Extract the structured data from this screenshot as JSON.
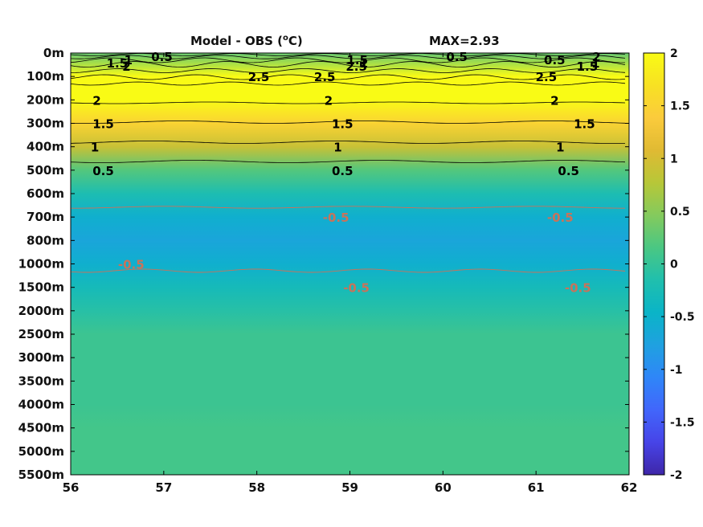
{
  "chart_data": {
    "type": "heatmap",
    "title": "Model - OBS (",
    "title_sup": "o",
    "title_tail": "C)",
    "max_label": "MAX=2.93",
    "x_ticks": [
      "56",
      "57",
      "58",
      "59",
      "60",
      "61",
      "62"
    ],
    "xlim": [
      56,
      62
    ],
    "y_ticks": [
      "0m",
      "100m",
      "200m",
      "300m",
      "400m",
      "500m",
      "600m",
      "700m",
      "800m",
      "1000m",
      "1500m",
      "2000m",
      "2500m",
      "3000m",
      "3500m",
      "4000m",
      "4500m",
      "5000m",
      "5500m"
    ],
    "colorbar": {
      "ticks": [
        "2",
        "1.5",
        "1",
        "0.5",
        "0",
        "-0.5",
        "-1",
        "-1.5",
        "-2"
      ],
      "clim": [
        -2,
        2
      ],
      "colormap": "parula",
      "colors": [
        "#3e26a8",
        "#4744e8",
        "#4166fb",
        "#2f86f8",
        "#1fa1e0",
        "#0ab4c7",
        "#20bfad",
        "#4ac783",
        "#84ca5d",
        "#b7c738",
        "#e0ba33",
        "#fbcb3c",
        "#f8e123",
        "#f9fb15"
      ]
    },
    "depth_profile": [
      {
        "depth": "0m",
        "value": 0.3
      },
      {
        "depth": "100m",
        "value": 2.6
      },
      {
        "depth": "200m",
        "value": 2.0
      },
      {
        "depth": "300m",
        "value": 1.5
      },
      {
        "depth": "400m",
        "value": 0.9
      },
      {
        "depth": "500m",
        "value": 0.2
      },
      {
        "depth": "600m",
        "value": -0.2
      },
      {
        "depth": "700m",
        "value": -0.55
      },
      {
        "depth": "800m",
        "value": -0.7
      },
      {
        "depth": "1000m",
        "value": -0.55
      },
      {
        "depth": "1500m",
        "value": -0.3
      },
      {
        "depth": "2000m",
        "value": -0.1
      },
      {
        "depth": "2500m",
        "value": 0.05
      },
      {
        "depth": "3000m",
        "value": 0.05
      },
      {
        "depth": "3500m",
        "value": 0.05
      },
      {
        "depth": "4000m",
        "value": 0.05
      },
      {
        "depth": "4500m",
        "value": 0.1
      },
      {
        "depth": "5000m",
        "value": 0.1
      },
      {
        "depth": "5500m",
        "value": 0.1
      }
    ],
    "contour_labels": [
      {
        "text": "0.5",
        "x": 56.98,
        "depth": "0m",
        "color": "black"
      },
      {
        "text": "1",
        "x": 56.62,
        "depth": "0m",
        "color": "black"
      },
      {
        "text": "1.5",
        "x": 56.5,
        "depth": "0m",
        "color": "black"
      },
      {
        "text": "2",
        "x": 56.6,
        "depth": "0m",
        "color": "black"
      },
      {
        "text": "2.5",
        "x": 58.02,
        "depth": "100m",
        "color": "black"
      },
      {
        "text": "1.5",
        "x": 59.08,
        "depth": "0m",
        "color": "black"
      },
      {
        "text": "1",
        "x": 59.15,
        "depth": "0m",
        "color": "black"
      },
      {
        "text": "2.5",
        "x": 59.07,
        "depth": "0m",
        "color": "black"
      },
      {
        "text": "0.5",
        "x": 60.15,
        "depth": "0m",
        "color": "black"
      },
      {
        "text": "0.5",
        "x": 61.2,
        "depth": "0m",
        "color": "black"
      },
      {
        "text": "1",
        "x": 61.64,
        "depth": "0m",
        "color": "black"
      },
      {
        "text": "1.5",
        "x": 61.55,
        "depth": "0m",
        "color": "black"
      },
      {
        "text": "2",
        "x": 61.65,
        "depth": "0m",
        "color": "black"
      },
      {
        "text": "2.5",
        "x": 58.73,
        "depth": "100m",
        "color": "black"
      },
      {
        "text": "2.5",
        "x": 61.11,
        "depth": "100m",
        "color": "black"
      },
      {
        "text": "2",
        "x": 56.28,
        "depth": "200m",
        "color": "black"
      },
      {
        "text": "2",
        "x": 58.77,
        "depth": "200m",
        "color": "black"
      },
      {
        "text": "2",
        "x": 61.2,
        "depth": "200m",
        "color": "black"
      },
      {
        "text": "1.5",
        "x": 56.35,
        "depth": "300m",
        "color": "black"
      },
      {
        "text": "1.5",
        "x": 58.92,
        "depth": "300m",
        "color": "black"
      },
      {
        "text": "1.5",
        "x": 61.52,
        "depth": "300m",
        "color": "black"
      },
      {
        "text": "1",
        "x": 56.26,
        "depth": "400m",
        "color": "black"
      },
      {
        "text": "1",
        "x": 58.87,
        "depth": "400m",
        "color": "black"
      },
      {
        "text": "1",
        "x": 61.26,
        "depth": "400m",
        "color": "black"
      },
      {
        "text": "0.5",
        "x": 56.35,
        "depth": "500m",
        "color": "black"
      },
      {
        "text": "0.5",
        "x": 58.92,
        "depth": "500m",
        "color": "black"
      },
      {
        "text": "0.5",
        "x": 61.35,
        "depth": "500m",
        "color": "black"
      },
      {
        "text": "-0.5",
        "x": 58.85,
        "depth": "700m",
        "color": "#c8735a"
      },
      {
        "text": "-0.5",
        "x": 61.26,
        "depth": "700m",
        "color": "#c8735a"
      },
      {
        "text": "-0.5",
        "x": 56.65,
        "depth": "1000m",
        "color": "#c8735a"
      },
      {
        "text": "-0.5",
        "x": 59.07,
        "depth": "1500m",
        "color": "#c8735a"
      },
      {
        "text": "-0.5",
        "x": 61.45,
        "depth": "1500m",
        "color": "#c8735a"
      }
    ]
  }
}
